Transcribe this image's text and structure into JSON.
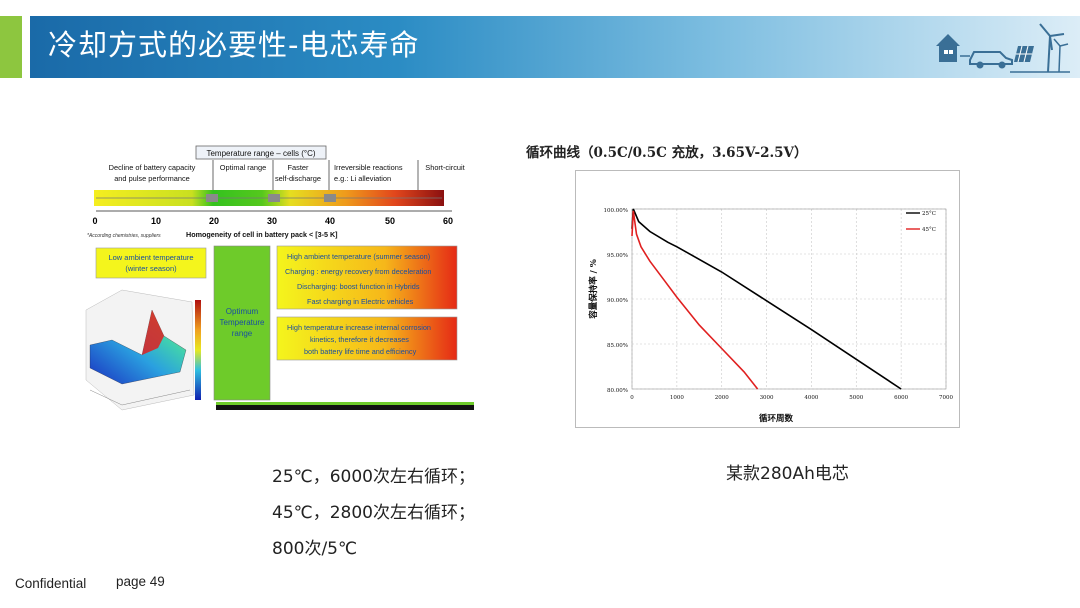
{
  "slide": {
    "title": "冷却方式的必要性-电芯寿命",
    "footer_confidential": "Confidential",
    "footer_page": "page 49"
  },
  "left_figure": {
    "header": "Temperature range – cells (°C)",
    "col1": [
      "Decline of battery capacity",
      "and pulse performance"
    ],
    "col2": "Optimal range",
    "col3": [
      "Faster",
      "self-discharge"
    ],
    "col4": [
      "Irreversible reactions",
      "e.g.: Li alleviation"
    ],
    "col5": "Short-circuit",
    "axis_ticks": [
      "0",
      "10",
      "20",
      "30",
      "40",
      "50",
      "60"
    ],
    "footnote": "*According chemistries, suppliers",
    "homogeneity": "Homogeneity of cell in battery pack < [3-5 K]",
    "low_box": [
      "Low ambient temperature",
      "(winter season)"
    ],
    "optimum_box": [
      "Optimum",
      "Temperature",
      "range"
    ],
    "high_box1": [
      "High ambient temperature (summer season)",
      "Charging : energy recovery from deceleration",
      "Discharging: boost function in Hybrids",
      "Fast charging in Electric vehicles"
    ],
    "high_box2": [
      "High temperature increase internal corrosion",
      "kinetics, therefore it decreases",
      "both battery life time and efficiency"
    ]
  },
  "right_figure": {
    "caption": "循环曲线（0.5C/0.5C 充放，3.65V-2.5V）"
  },
  "chart_data": {
    "type": "line",
    "title": "",
    "xlabel": "循环周数",
    "ylabel": "容量保持率 / %",
    "xlim": [
      0,
      7000
    ],
    "ylim": [
      80,
      100
    ],
    "x_ticks": [
      "0",
      "1000",
      "2000",
      "3000",
      "4000",
      "5000",
      "6000",
      "7000"
    ],
    "y_ticks": [
      "80.00%",
      "85.00%",
      "90.00%",
      "95.00%",
      "100.00%"
    ],
    "grid": true,
    "legend": "top-right",
    "series": [
      {
        "name": "25°C",
        "color": "#000000",
        "x": [
          0,
          30,
          150,
          400,
          800,
          1000,
          2000,
          3000,
          4000,
          5000,
          6000
        ],
        "y": [
          97.8,
          100,
          98.6,
          97.5,
          96.3,
          95.8,
          93.0,
          89.8,
          86.6,
          83.3,
          80.0
        ]
      },
      {
        "name": "45°C",
        "color": "#e02020",
        "x": [
          0,
          30,
          100,
          200,
          400,
          700,
          1000,
          1500,
          2000,
          2500,
          2800
        ],
        "y": [
          97.0,
          99.8,
          97.2,
          95.8,
          94.2,
          92.2,
          90.2,
          87.1,
          84.5,
          81.9,
          80.0
        ]
      }
    ]
  },
  "notes": {
    "line1": "25℃，6000次左右循环；",
    "line2": "45℃，2800次左右循环；",
    "line3": "800次/5℃",
    "cell_name": "某款280Ah电芯"
  }
}
